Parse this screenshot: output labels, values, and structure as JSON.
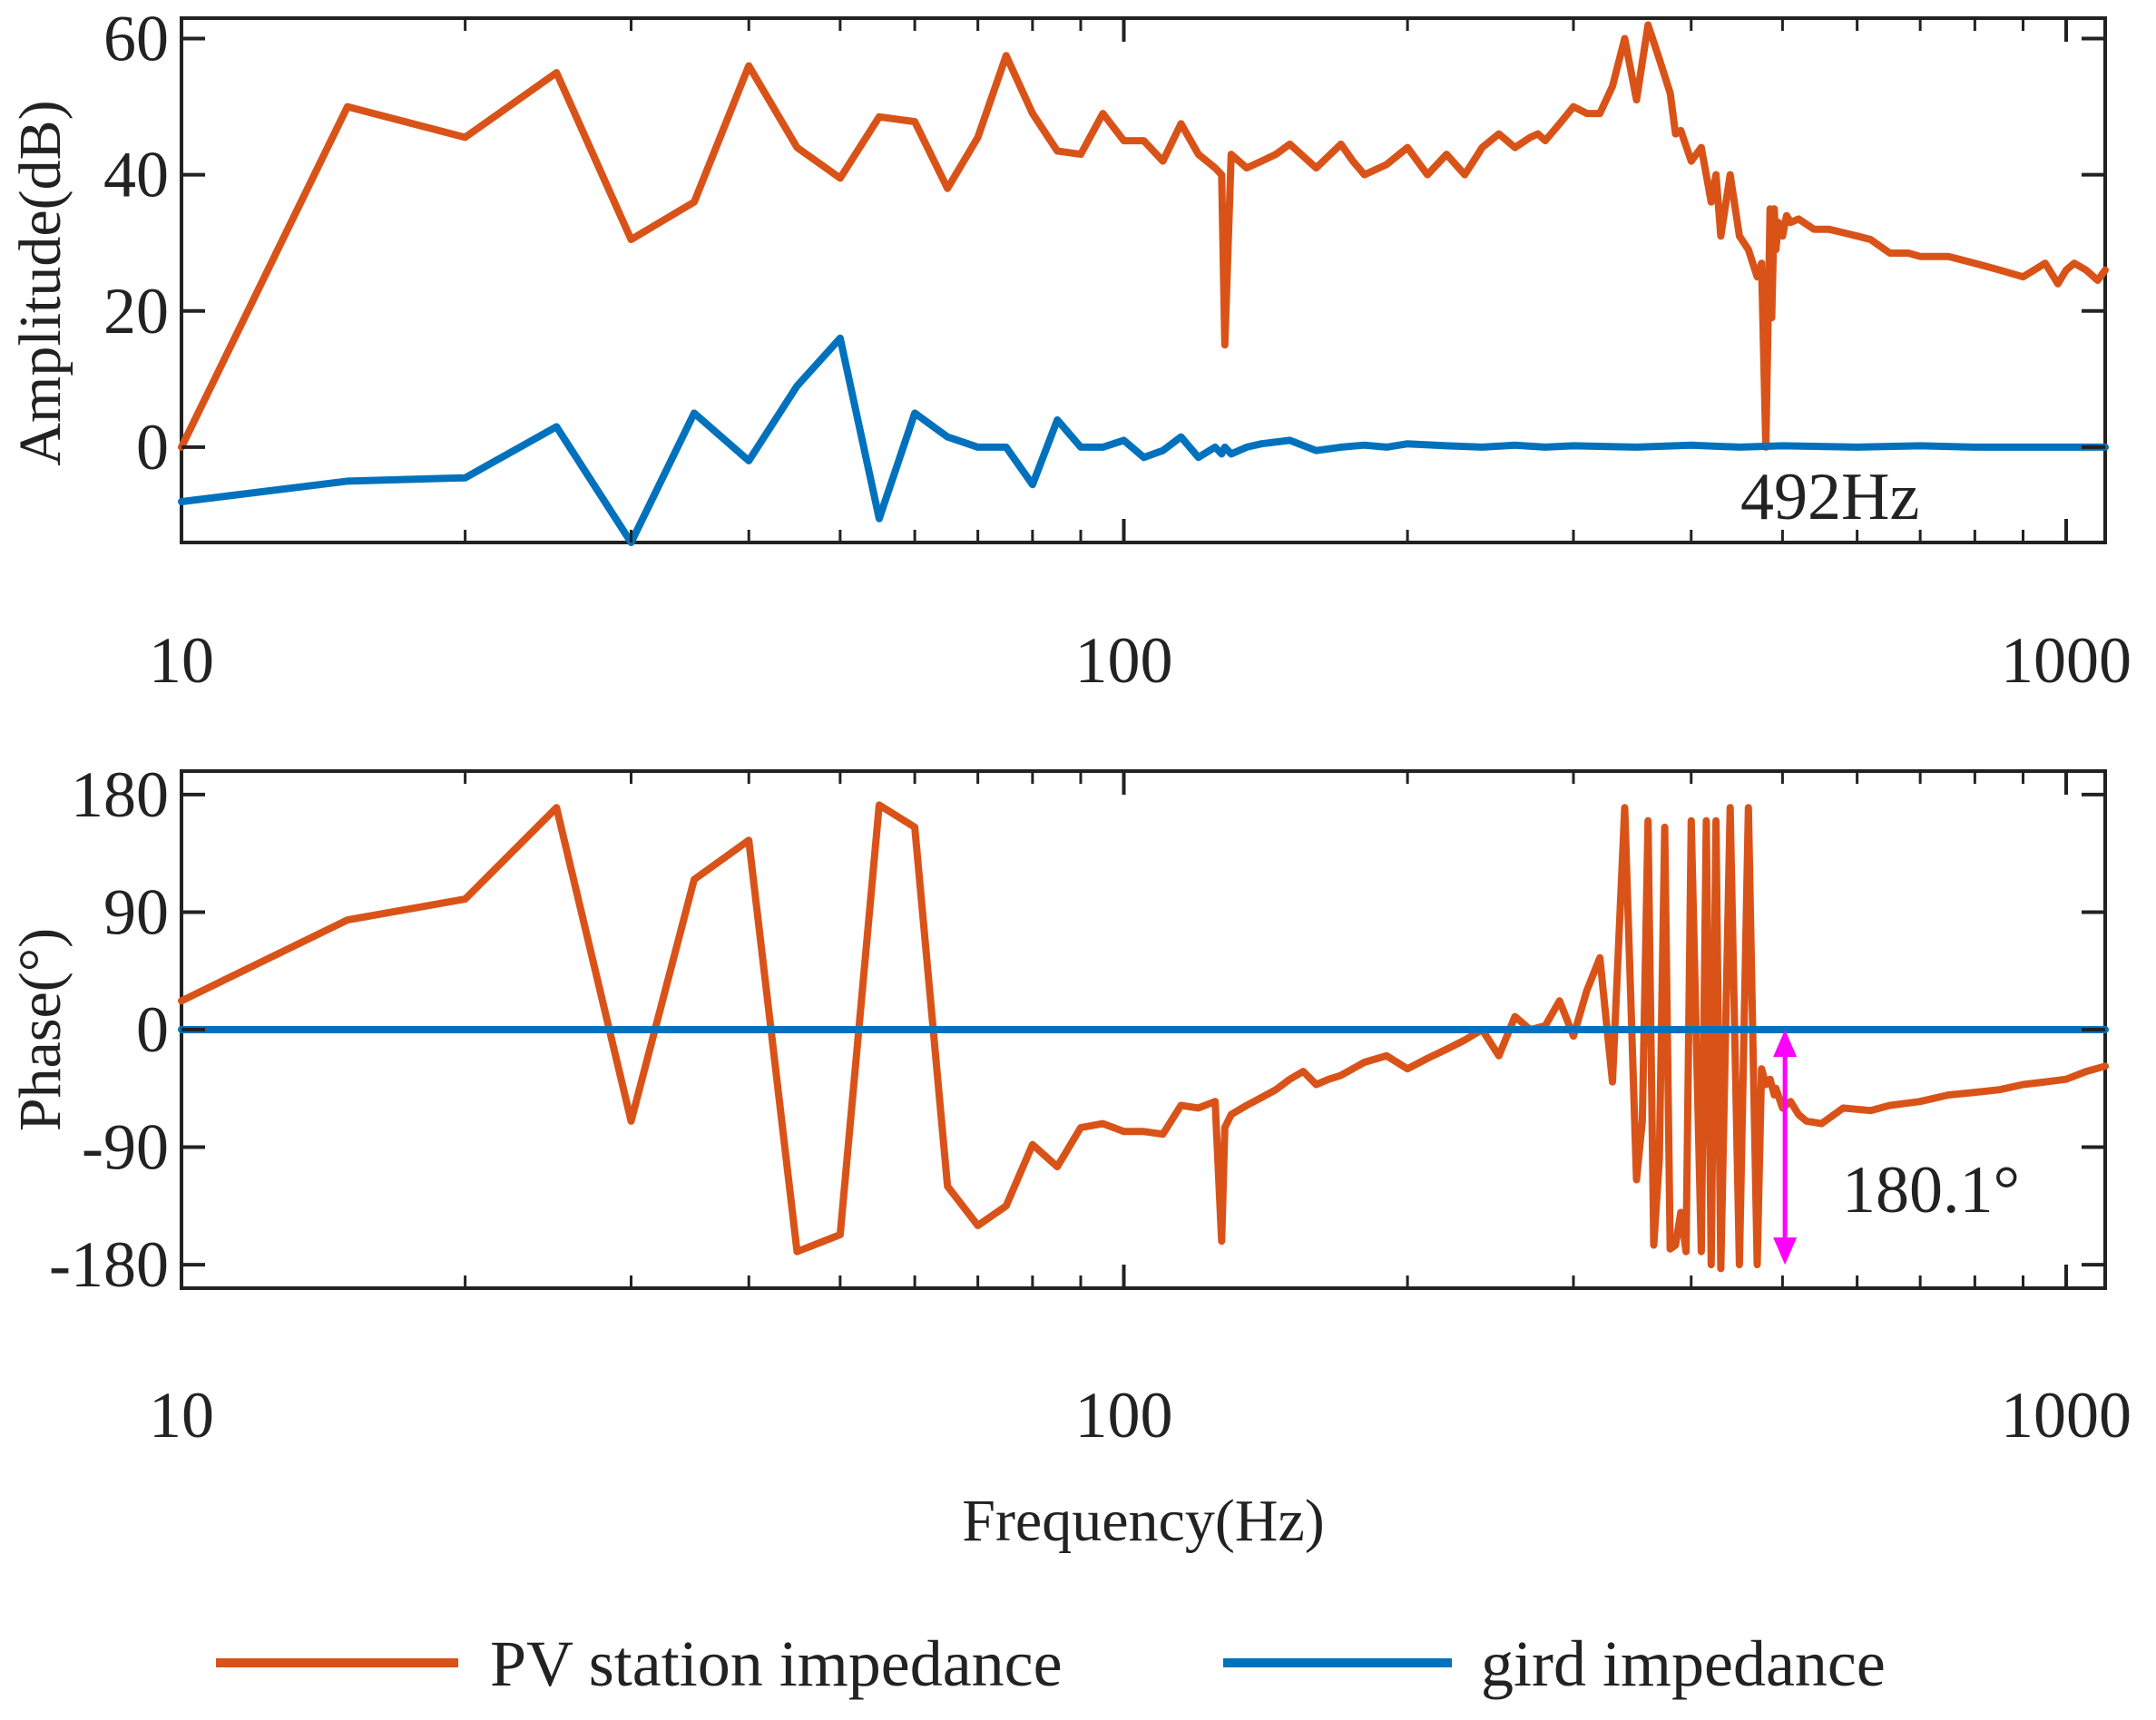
{
  "colors": {
    "pv": "#D95319",
    "grid": "#0072BD",
    "marker": "#FF00FF",
    "axis": "#222222"
  },
  "legend": {
    "pv_label": "PV station impedance",
    "grid_label": "gird impedance",
    "placement": "bottom-center"
  },
  "chart_data": [
    {
      "type": "line",
      "name": "amplitude",
      "xscale": "log",
      "xlim": [
        10,
        1100
      ],
      "ylim": [
        -14,
        63
      ],
      "ylabel": "Amplitude(dB)",
      "xlabel": "",
      "xticks": [
        10,
        100,
        1000
      ],
      "xtick_labels": [
        "10",
        "100",
        "1000"
      ],
      "yticks": [
        0,
        20,
        40,
        60
      ],
      "ytick_labels": [
        "0",
        "20",
        "40",
        "60"
      ],
      "annotation": {
        "text": "492Hz",
        "x": 492
      },
      "series": [
        {
          "name": "PV station impedance",
          "x": [
            10,
            15,
            20,
            25,
            30,
            35,
            40,
            45,
            50,
            55,
            60,
            65,
            70,
            75,
            80,
            85,
            90,
            95,
            100,
            105,
            110,
            115,
            120,
            125,
            127,
            128,
            130,
            135,
            140,
            145,
            150,
            160,
            170,
            175,
            180,
            190,
            200,
            210,
            220,
            230,
            235,
            240,
            250,
            260,
            270,
            275,
            280,
            290,
            300,
            310,
            320,
            330,
            340,
            350,
            360,
            370,
            380,
            385,
            390,
            400,
            410,
            420,
            425,
            430,
            440,
            450,
            460,
            470,
            475,
            480,
            485,
            487,
            490,
            492,
            495,
            500,
            505,
            510,
            520,
            540,
            560,
            580,
            600,
            620,
            650,
            680,
            700,
            750,
            800,
            850,
            900,
            950,
            980,
            1000,
            1020,
            1050,
            1080,
            1100
          ],
          "y": [
            0,
            50,
            45.5,
            55,
            30.5,
            36,
            56,
            44,
            39.5,
            48.5,
            47.8,
            38,
            45.5,
            57.5,
            49,
            43.5,
            43,
            49,
            45,
            45,
            42,
            47.5,
            43,
            41,
            40,
            15,
            43,
            41,
            42,
            43,
            44.5,
            41,
            44.5,
            42,
            40,
            41.5,
            44,
            40,
            43,
            40,
            42,
            44,
            46,
            44,
            45.5,
            46,
            45,
            47.5,
            50,
            49,
            49,
            53,
            60,
            51,
            62,
            57,
            52,
            46,
            46.5,
            42,
            44,
            36,
            40,
            31,
            40,
            31,
            29,
            25,
            27,
            0,
            35,
            19,
            35,
            29,
            33,
            31,
            34,
            33,
            33.5,
            32,
            32,
            31.5,
            31,
            30.5,
            28.5,
            28.5,
            28,
            28,
            27,
            26,
            25,
            27,
            24,
            26,
            27,
            26,
            24.5,
            26
          ]
        },
        {
          "name": "gird impedance",
          "x": [
            10,
            15,
            20,
            25,
            30,
            35,
            40,
            45,
            50,
            55,
            60,
            65,
            70,
            75,
            80,
            85,
            90,
            95,
            100,
            105,
            110,
            115,
            120,
            125,
            127,
            128,
            130,
            135,
            140,
            150,
            160,
            170,
            180,
            190,
            200,
            220,
            240,
            260,
            280,
            300,
            350,
            400,
            450,
            500,
            600,
            700,
            800,
            900,
            1000,
            1100
          ],
          "y": [
            -8,
            -5,
            -4.5,
            3,
            -14,
            5,
            -2,
            9,
            16,
            -10.5,
            5,
            1.5,
            0,
            0,
            -5.5,
            4,
            0,
            0,
            1,
            -1.5,
            -0.5,
            1.5,
            -1.5,
            0,
            -1,
            0,
            -1,
            0,
            0.5,
            1,
            -0.5,
            0,
            0.3,
            0,
            0.5,
            0.2,
            0,
            0.3,
            0,
            0.2,
            0,
            0.3,
            0,
            0.2,
            0,
            0.2,
            0,
            0,
            0,
            0
          ]
        }
      ]
    },
    {
      "type": "line",
      "name": "phase",
      "xscale": "log",
      "xlim": [
        10,
        1100
      ],
      "ylim": [
        -198,
        198
      ],
      "ylabel": "Phase(°)",
      "xlabel": "Frequency(Hz)",
      "xticks": [
        10,
        100,
        1000
      ],
      "xtick_labels": [
        "10",
        "100",
        "1000"
      ],
      "yticks": [
        -180,
        -90,
        0,
        90,
        180
      ],
      "ytick_labels": [
        "-180",
        "-90",
        "0",
        "90",
        "180"
      ],
      "annotation": {
        "text": "180.1°",
        "x": 492,
        "y_from": 0,
        "y_to": -180
      },
      "series": [
        {
          "name": "PV station impedance",
          "x": [
            10,
            15,
            20,
            25,
            30,
            35,
            40,
            45,
            50,
            55,
            60,
            65,
            70,
            75,
            80,
            85,
            90,
            95,
            100,
            105,
            110,
            115,
            120,
            125,
            127,
            128,
            130,
            135,
            140,
            145,
            150,
            155,
            160,
            165,
            170,
            180,
            190,
            200,
            210,
            220,
            230,
            240,
            250,
            260,
            270,
            280,
            290,
            300,
            310,
            320,
            330,
            340,
            350,
            355,
            360,
            365,
            370,
            375,
            380,
            385,
            390,
            395,
            400,
            410,
            415,
            420,
            425,
            430,
            440,
            450,
            460,
            470,
            475,
            480,
            485,
            490,
            492,
            500,
            510,
            520,
            530,
            550,
            580,
            620,
            650,
            700,
            750,
            800,
            850,
            900,
            950,
            1000,
            1050,
            1100
          ],
          "y": [
            22,
            84,
            100,
            170,
            -70,
            115,
            145,
            -170,
            -157,
            172,
            155,
            -120,
            -150,
            -135,
            -88,
            -105,
            -75,
            -72,
            -78,
            -78,
            -80,
            -58,
            -60,
            -55,
            -162,
            -75,
            -65,
            -58,
            -52,
            -46,
            -38,
            -32,
            -42,
            -38,
            -35,
            -25,
            -20,
            -30,
            -22,
            -15,
            -8,
            0,
            -20,
            10,
            0,
            3,
            22,
            -5,
            30,
            55,
            -40,
            170,
            -115,
            -70,
            160,
            -165,
            -100,
            155,
            -168,
            -165,
            -140,
            -170,
            160,
            -170,
            160,
            -180,
            160,
            -183,
            170,
            -180,
            170,
            -180,
            -30,
            -42,
            -38,
            -50,
            -45,
            -60,
            -55,
            -65,
            -70,
            -72,
            -60,
            -62,
            -58,
            -55,
            -50,
            -48,
            -46,
            -42,
            -40,
            -38,
            -32,
            -28
          ]
        },
        {
          "name": "gird impedance",
          "x": [
            10,
            1100
          ],
          "y": [
            0,
            0
          ]
        }
      ]
    }
  ]
}
